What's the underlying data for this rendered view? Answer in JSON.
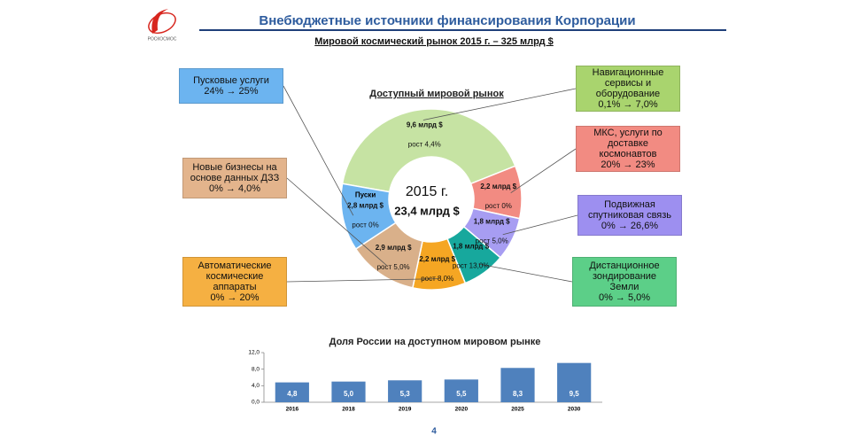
{
  "header": {
    "logo_text": "РОСКОСМОС",
    "title": "Внебюджетные источники финансирования Корпорации",
    "subtitle": "Мировой космический рынок 2015 г. – 325 млрд $"
  },
  "chart_data": [
    {
      "type": "donut",
      "title": "Доступный мировой рынок",
      "center_year": "2015 г.",
      "center_total": "23,4 млрд $",
      "annotation": "Пуски",
      "categories": [
        "Навигационные сервисы и оборудование",
        "МКС, услуги по доставке космонавтов",
        "Подвижная спутниковая связь",
        "Дистанционное зондирование Земли",
        "Автоматические космические аппараты",
        "Новые бизнесы на основе данных ДЗЗ",
        "Пусковые услуги"
      ],
      "values": [
        9.6,
        2.2,
        1.8,
        1.8,
        2.2,
        2.9,
        2.8
      ],
      "value_labels": [
        "9,6 млрд $",
        "2,2 млрд $",
        "1,8 млрд $",
        "1,8 млрд $",
        "2,2 млрд $",
        "2,9 млрд $",
        "2,8 млрд $"
      ],
      "growth_labels": [
        "рост 4,4%",
        "рост 0%",
        "рост 5,0%",
        "рост 13,0%",
        "рост 8,0%",
        "рост 5,0%",
        "рост 0%"
      ],
      "share_changes": [
        "0,1% → 7,0%",
        "20% → 23%",
        "0% → 26,6%",
        "0% → 5,0%",
        "0% → 20%",
        "0% → 4,0%",
        "24% → 25%"
      ],
      "colors": [
        "#c6e3a3",
        "#f28b82",
        "#a79df2",
        "#17a89d",
        "#f5a623",
        "#d9b08a",
        "#6cb4f0"
      ],
      "box_colors": [
        "#a9d46e",
        "#f28b82",
        "#9d8ff0",
        "#5ccf88",
        "#f5b042",
        "#e3b48c",
        "#6cb4f0"
      ]
    },
    {
      "type": "bar",
      "title": "Доля России на доступном мировом рынке",
      "categories": [
        "2016",
        "2018",
        "2019",
        "2020",
        "2025",
        "2030"
      ],
      "values": [
        4.8,
        5.0,
        5.3,
        5.5,
        8.3,
        9.5
      ],
      "value_labels": [
        "4,8",
        "5,0",
        "5,3",
        "5,5",
        "8,3",
        "9,5"
      ],
      "color": "#4f81bd",
      "ylim": [
        0,
        12
      ],
      "yticks": [
        {
          "value": 0,
          "label": "0,0"
        },
        {
          "value": 4,
          "label": "4,0"
        },
        {
          "value": 8,
          "label": "8,0"
        },
        {
          "value": 12,
          "label": "12,0"
        }
      ],
      "grid": false
    }
  ],
  "page_number": "4"
}
